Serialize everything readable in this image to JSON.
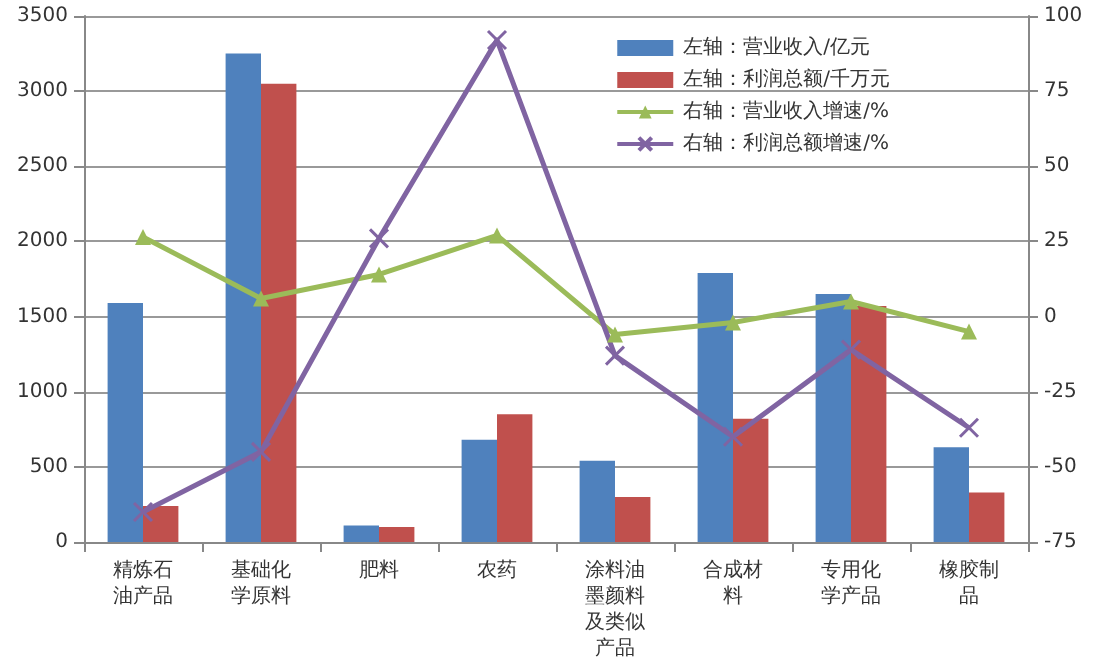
{
  "chart_data": {
    "type": "bar",
    "categories": [
      "精炼石油产品",
      "基础化学原料",
      "肥料",
      "农药",
      "涂料油墨颜料及类似产品",
      "合成材料",
      "专用化学产品",
      "橡胶制品"
    ],
    "series": [
      {
        "name": "左轴：营业收入/亿元",
        "color": "#4f81bd",
        "values": [
          1590,
          3250,
          110,
          680,
          540,
          1790,
          1650,
          630
        ]
      },
      {
        "name": "左轴：利润总额/千万元",
        "color": "#c0504d",
        "values": [
          240,
          3050,
          100,
          850,
          300,
          820,
          1570,
          330
        ]
      },
      {
        "name": "右轴：营业收入增速/%",
        "type": "line",
        "axis": "y2",
        "marker": "triangle",
        "color": "#9bbb59",
        "values": [
          26.5,
          6,
          14,
          27,
          -6,
          -2,
          5,
          -5
        ]
      },
      {
        "name": "右轴：利润总额增速/%",
        "type": "line",
        "axis": "y2",
        "marker": "cross",
        "color": "#8064a2",
        "values": [
          -65,
          -45,
          26,
          92,
          -13,
          -40,
          -11,
          -37
        ]
      }
    ],
    "ylim": [
      0,
      3500
    ],
    "yticks": [
      0,
      500,
      1000,
      1500,
      2000,
      2500,
      3000,
      3500
    ],
    "y2lim": [
      -75,
      100
    ],
    "y2ticks": [
      -75,
      -50,
      -25,
      0,
      25,
      50,
      75,
      100
    ],
    "grid": "y",
    "legend": "top right"
  }
}
